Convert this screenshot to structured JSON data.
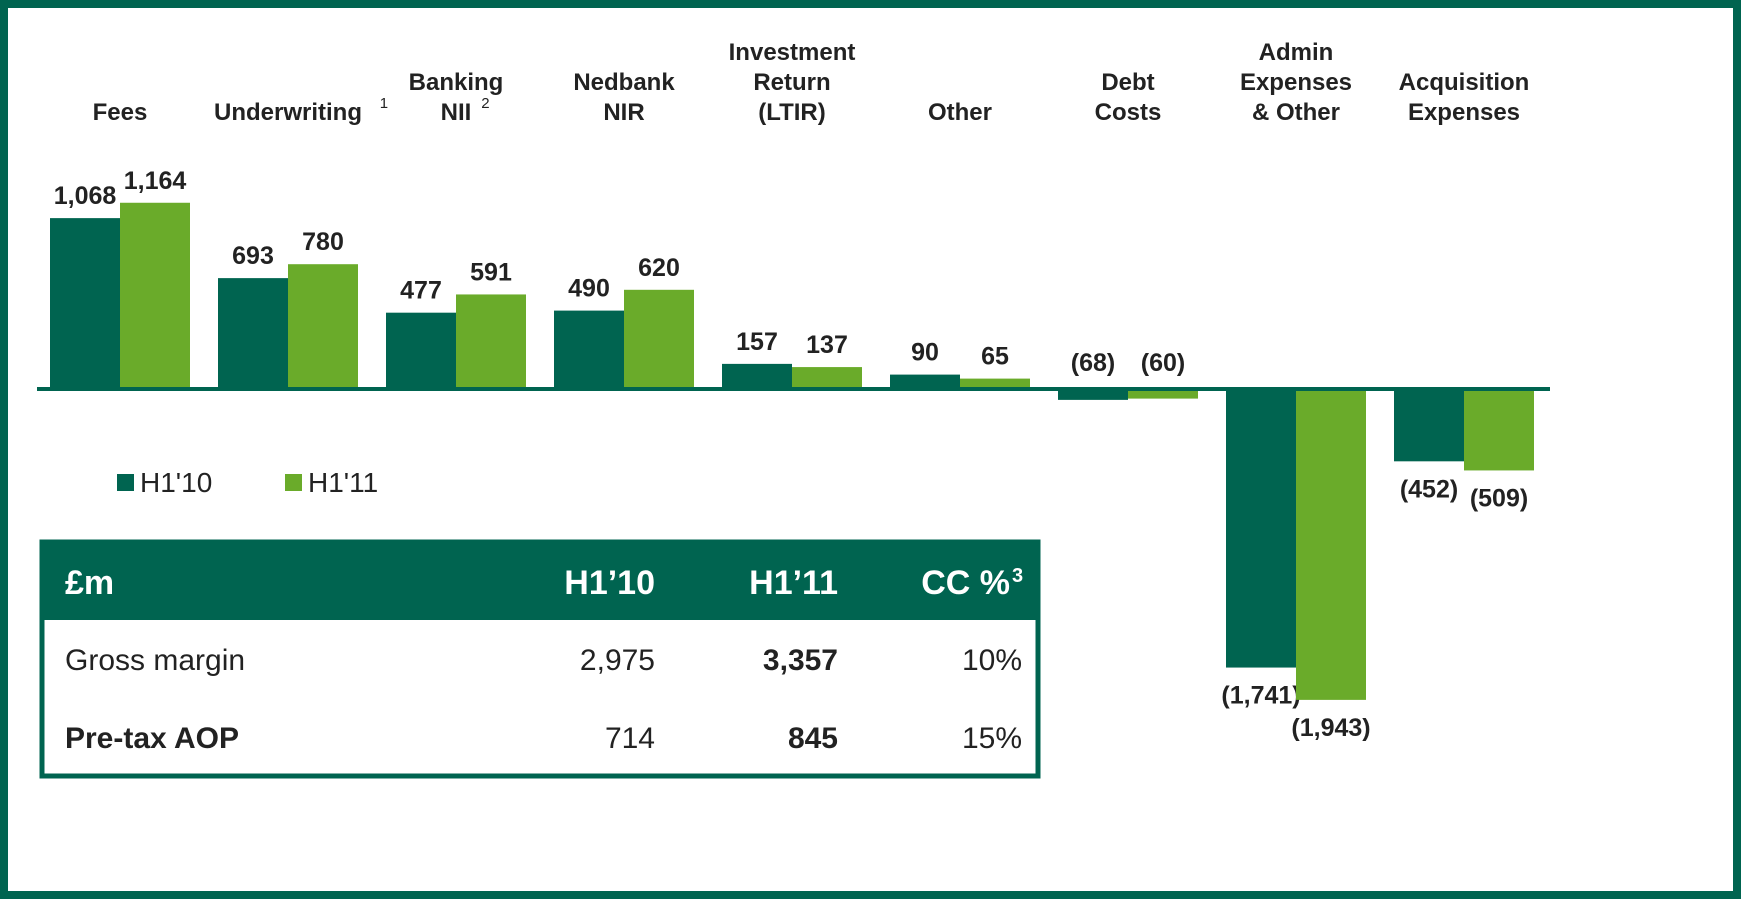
{
  "chart_data": {
    "type": "bar",
    "categories": [
      "Fees",
      "Underwriting",
      "Banking\nNII",
      "Nedbank\nNIR",
      "Investment\nReturn\n(LTIR)",
      "Other",
      "Debt\nCosts",
      "Admin\nExpenses\n& Other",
      "Acquisition\nExpenses"
    ],
    "category_notes": [
      null,
      "1",
      "2",
      null,
      null,
      null,
      null,
      null,
      null
    ],
    "series": [
      {
        "name": "H1'10",
        "color": "#006450",
        "values": [
          1068,
          693,
          477,
          490,
          157,
          90,
          -68,
          -1741,
          -452
        ],
        "value_labels": [
          "1,068",
          "693",
          "477",
          "490",
          "157",
          "90",
          "(68)",
          "(1,741)",
          "(452)"
        ]
      },
      {
        "name": "H1'11",
        "color": "#6aab2a",
        "values": [
          1164,
          780,
          591,
          620,
          137,
          65,
          -60,
          -1943,
          -509
        ],
        "value_labels": [
          "1,164",
          "780",
          "591",
          "620",
          "137",
          "65",
          "(60)",
          "(1,943)",
          "(509)"
        ]
      }
    ],
    "ylim": [
      -2000,
      1200
    ]
  },
  "table": {
    "header": [
      "£m",
      "H1’10",
      "H1’11",
      "CC %"
    ],
    "header_notes": [
      null,
      null,
      null,
      "3"
    ],
    "rows": [
      [
        "Gross margin",
        "2,975",
        "3,357",
        "10%"
      ],
      [
        "Pre-tax AOP",
        "714",
        "845",
        "15%"
      ]
    ]
  }
}
